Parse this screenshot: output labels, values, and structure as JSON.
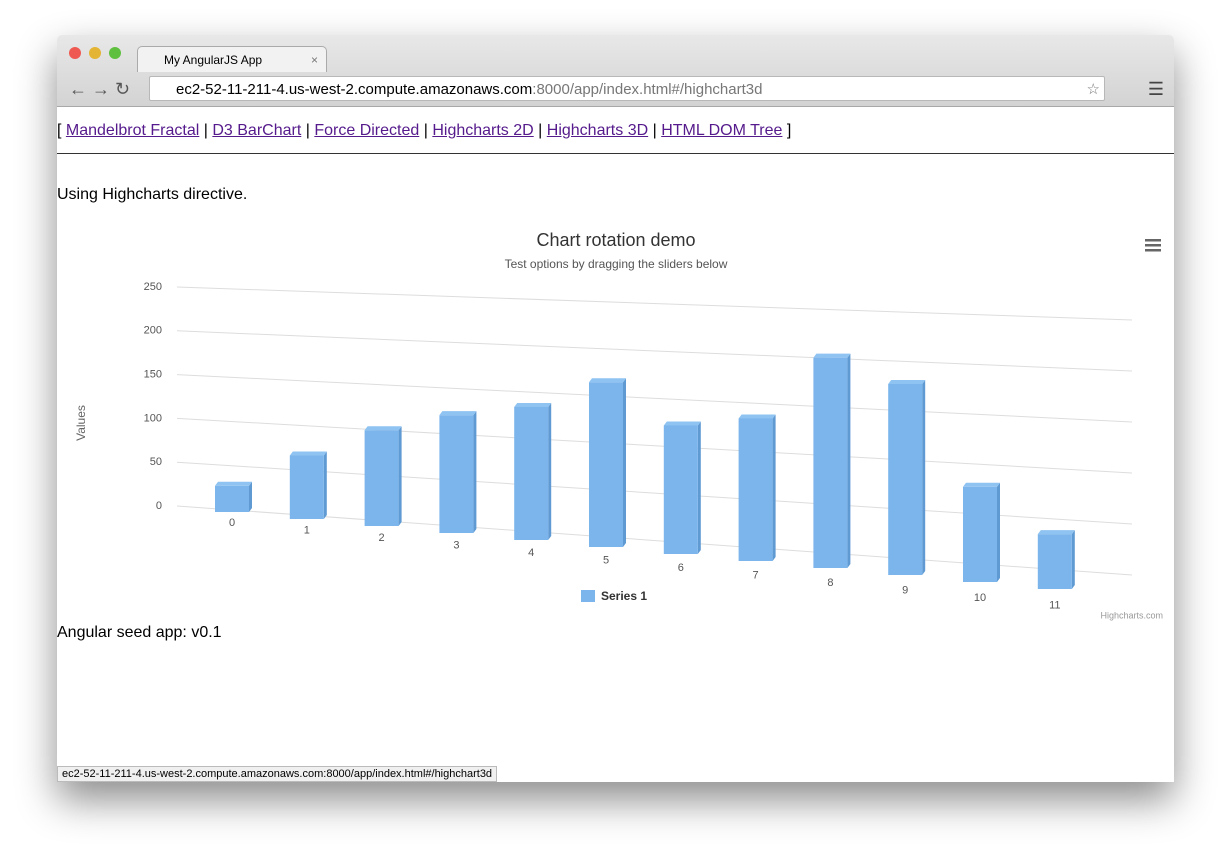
{
  "browser": {
    "tab_title": "My AngularJS App",
    "url_host": "ec2-52-11-211-4.us-west-2.compute.amazonaws.com",
    "url_path": ":8000/app/index.html#/highchart3d",
    "status_url": "ec2-52-11-211-4.us-west-2.compute.amazonaws.com:8000/app/index.html#/highchart3d"
  },
  "nav": {
    "open": "[",
    "separator": "|",
    "close": "]",
    "links": [
      "Mandelbrot Fractal",
      "D3 BarChart",
      "Force Directed",
      "Highcharts 2D",
      "Highcharts 3D",
      "HTML DOM Tree"
    ]
  },
  "page": {
    "intro": "Using Highcharts directive.",
    "footer": "Angular seed app: v0.1"
  },
  "chart_data": {
    "type": "bar",
    "title": "Chart rotation demo",
    "subtitle": "Test options by dragging the sliders below",
    "y_label": "Values",
    "categories": [
      "0",
      "1",
      "2",
      "3",
      "4",
      "5",
      "6",
      "7",
      "8",
      "9",
      "10",
      "11"
    ],
    "series": [
      {
        "name": "Series 1",
        "color": "#7cb5ec",
        "values": [
          29.9,
          71.5,
          106.4,
          129.2,
          144.0,
          176.0,
          135.6,
          148.5,
          216.4,
          194.1,
          95.6,
          54.4
        ]
      }
    ],
    "ylim": [
      0,
      250
    ],
    "yticks": [
      0,
      50,
      100,
      150,
      200,
      250
    ],
    "grid": true,
    "credits": "Highcharts.com"
  }
}
